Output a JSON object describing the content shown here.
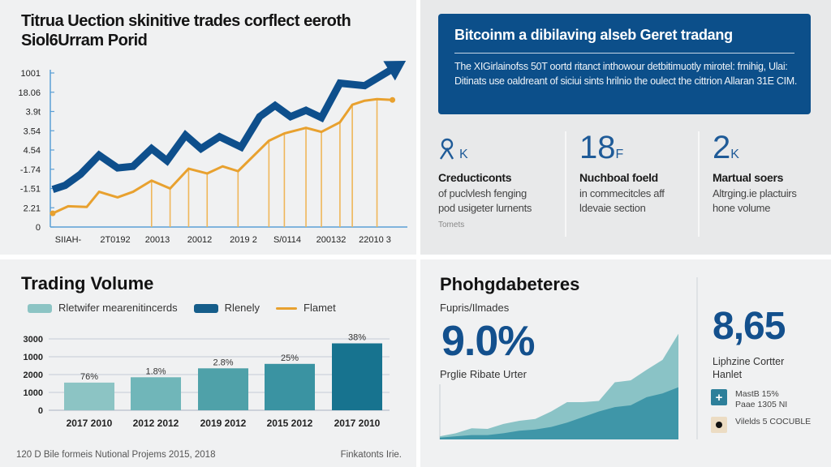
{
  "top_left": {
    "title": "Titrua Uection skinitive trades corflect eeroth Siol6Urram Porid",
    "chart_data": {
      "type": "line",
      "title": "Titrua Uection skinitive trades corflect eeroth Siol6Urram Porid",
      "xlabel": "",
      "ylabel": "",
      "ytick_labels": [
        "0",
        "2.21",
        "-1.51",
        "-1.74",
        "4.54",
        "3.54",
        "3.9t",
        "18.06",
        "1001"
      ],
      "xtick_labels": [
        "SIIAH-",
        "2T0192",
        "20013",
        "20012",
        "2019 2",
        "S/0114",
        "200132",
        "22010 3"
      ],
      "ylim": [
        0,
        8
      ],
      "y_units": "tick index (axis labels are illegible/non-monotonic)",
      "grid": false,
      "series": [
        {
          "name": "blue",
          "color": "#0e4f8c",
          "x": [
            0,
            0.4,
            0.9,
            1.5,
            2.1,
            2.6,
            3.2,
            3.7,
            4.3,
            4.8,
            5.4,
            6.1,
            6.7,
            7.2,
            7.7,
            8.2,
            8.7,
            9.3,
            10.1,
            11.3
          ],
          "y": [
            1.95,
            2.16,
            2.74,
            3.73,
            3.07,
            3.15,
            4.07,
            3.44,
            4.77,
            4.07,
            4.69,
            4.15,
            5.73,
            6.31,
            5.73,
            6.06,
            5.68,
            7.47,
            7.34,
            8.5
          ],
          "arrow_end": true
        },
        {
          "name": "orange",
          "color": "#e8a12f",
          "x": [
            0,
            0.5,
            1.1,
            1.5,
            2.1,
            2.6,
            3.2,
            3.8,
            4.4,
            5.0,
            5.5,
            6.0,
            7.0,
            7.5,
            8.2,
            8.7,
            9.3,
            9.7,
            10.1,
            10.5,
            11.0
          ],
          "y": [
            0.71,
            1.08,
            1.04,
            1.83,
            1.54,
            1.83,
            2.41,
            2.0,
            3.03,
            2.78,
            3.15,
            2.9,
            4.48,
            4.86,
            5.15,
            4.94,
            5.44,
            6.35,
            6.56,
            6.64,
            6.6
          ],
          "drop_lines_at": [
            3.2,
            3.8,
            4.4,
            5.0,
            6.0,
            7.0,
            7.5,
            8.2,
            8.7,
            9.3,
            9.7,
            10.5
          ]
        }
      ]
    }
  },
  "top_right": {
    "banner": {
      "title": "Bitcoinm a dibilaving alseb Geret tradang",
      "body": "The XIGirlainofss 50T oortd ritanct inthowour detbitimuotly mirotel: frnihig, Ulai: Ditinats use oaldreant of siciui sints hrilnio the oulect the cittrion Allaran 31E CIM."
    },
    "stats": [
      {
        "icon": "person-icon",
        "value": "8",
        "unit": "K",
        "heading": "Creducticonts",
        "body_lines": [
          "of puclvlesh fenging",
          "pod usigeter lurnents"
        ],
        "footnote": "Tomets"
      },
      {
        "value": "18",
        "unit": "F",
        "heading": "Nuchboal foeld",
        "body_lines": [
          "in commecitcles aff",
          "ldevaie section"
        ]
      },
      {
        "value": "2",
        "unit": "K",
        "heading": "Martual soers",
        "body_lines": [
          "Altrging.ie plactuirs",
          "hone volume"
        ]
      }
    ],
    "accent_color": "#0c4f8a"
  },
  "bottom_left": {
    "title": "Trading Volume",
    "legend": [
      {
        "label": "Rletwifer mearenitincerds",
        "kind": "swatch",
        "color": "#8cc4c4"
      },
      {
        "label": "Rlenely",
        "kind": "swatch",
        "color": "#155d8a"
      },
      {
        "label": "Flamet",
        "kind": "line",
        "color": "#e8a12f"
      }
    ],
    "chart_data": {
      "type": "bar",
      "title": "Trading Volume",
      "ytick_labels": [
        "0",
        "1000",
        "2000",
        "1000",
        "3000"
      ],
      "ylim": [
        0,
        4
      ],
      "y_units": "tick index (axis labels are non-monotonic)",
      "categories": [
        "2017 2010",
        "2012 2012",
        "2019 2012",
        "2015 2012",
        "2017 2010"
      ],
      "values": [
        1.55,
        1.85,
        2.35,
        2.6,
        3.75
      ],
      "data_labels": [
        "76%",
        "1.8%",
        "2.8%",
        "25%",
        "38%"
      ],
      "colors": [
        "#8cc4c4",
        "#70b6b9",
        "#4fa1a9",
        "#3a93a2",
        "#17738f"
      ],
      "grid": true
    },
    "footnote": "120 D Bile formeis Nutional Projems 2015, 2018",
    "credit": "Finkatonts Irie."
  },
  "bottom_right": {
    "title": "Phohgdabeteres",
    "subtitle": "Fupris/Ilmades",
    "big_value": "9.0%",
    "caption": "Prglie Ribate Urter",
    "chart_data": {
      "type": "area",
      "x": [
        0,
        1,
        2,
        3,
        4,
        5,
        6,
        7,
        8,
        9,
        10,
        11,
        12,
        13,
        14,
        15
      ],
      "series": [
        {
          "name": "light",
          "color": "#8ac3c6",
          "values": [
            0.05,
            0.1,
            0.18,
            0.17,
            0.25,
            0.3,
            0.33,
            0.45,
            0.6,
            0.6,
            0.62,
            0.92,
            0.95,
            1.12,
            1.28,
            1.7
          ]
        },
        {
          "name": "dark",
          "color": "#3f96a8",
          "values": [
            0.03,
            0.05,
            0.07,
            0.07,
            0.1,
            0.14,
            0.16,
            0.2,
            0.27,
            0.36,
            0.45,
            0.52,
            0.55,
            0.68,
            0.74,
            0.84
          ]
        }
      ],
      "ylim": [
        0,
        1.8
      ]
    },
    "side": {
      "big_value": "8,65",
      "label_lines": [
        "Liphzine Cortter",
        "Hanlet"
      ],
      "rows": [
        {
          "icon": "plus-icon",
          "lines": [
            "MastB 15%",
            "Paae 1305 NI"
          ]
        },
        {
          "icon": "dot-icon",
          "lines": [
            "Vilelds 5 COCUBLE"
          ]
        }
      ]
    }
  }
}
